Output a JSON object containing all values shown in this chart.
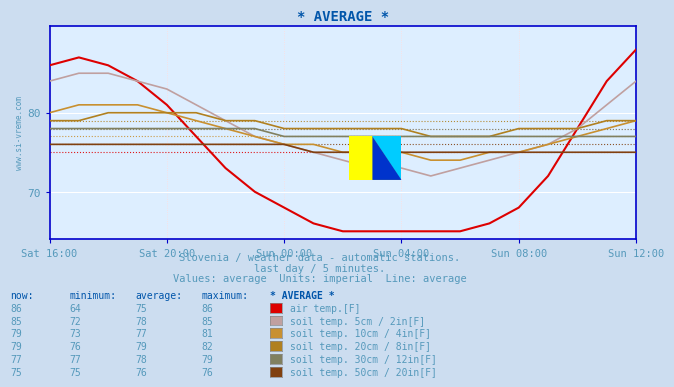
{
  "title": "* AVERAGE *",
  "title_color": "#0055aa",
  "bg_color": "#ccddf0",
  "plot_bg_color": "#ddeeff",
  "grid_color_major": "#ffffff",
  "grid_color_minor": "#eef4ff",
  "axis_color": "#0000cc",
  "text_color": "#5599bb",
  "subtitle1": "Slovenia / weather data - automatic stations.",
  "subtitle2": "last day / 5 minutes.",
  "subtitle3": "Values: average  Units: imperial  Line: average",
  "ylabel_text": "www.si-vreme.com",
  "ylim": [
    64,
    91
  ],
  "yticks": [
    70,
    80
  ],
  "xtick_labels": [
    "Sat 16:00",
    "Sat 20:00",
    "Sun 00:00",
    "Sun 04:00",
    "Sun 08:00",
    "Sun 12:00"
  ],
  "xtick_positions": [
    0,
    4,
    8,
    12,
    16,
    20
  ],
  "series_keys": [
    "air_temp",
    "soil_5cm",
    "soil_10cm",
    "soil_20cm",
    "soil_30cm",
    "soil_50cm"
  ],
  "series": {
    "air_temp": {
      "color": "#dd0000",
      "avg": 75,
      "points": [
        86,
        87,
        86,
        84,
        81,
        77,
        73,
        70,
        68,
        66,
        65,
        65,
        65,
        65,
        65,
        66,
        68,
        72,
        78,
        84,
        88
      ]
    },
    "soil_5cm": {
      "color": "#c0a0a0",
      "avg": 78,
      "points": [
        84,
        85,
        85,
        84,
        83,
        81,
        79,
        77,
        76,
        75,
        74,
        73,
        73,
        72,
        73,
        74,
        75,
        76,
        78,
        81,
        84
      ]
    },
    "soil_10cm": {
      "color": "#c89030",
      "avg": 77,
      "points": [
        80,
        81,
        81,
        81,
        80,
        79,
        78,
        77,
        76,
        76,
        75,
        75,
        75,
        74,
        74,
        75,
        75,
        76,
        77,
        78,
        79
      ]
    },
    "soil_20cm": {
      "color": "#b08020",
      "avg": 79,
      "points": [
        79,
        79,
        80,
        80,
        80,
        80,
        79,
        79,
        78,
        78,
        78,
        78,
        78,
        77,
        77,
        77,
        78,
        78,
        78,
        79,
        79
      ]
    },
    "soil_30cm": {
      "color": "#808060",
      "avg": 78,
      "points": [
        78,
        78,
        78,
        78,
        78,
        78,
        78,
        78,
        77,
        77,
        77,
        77,
        77,
        77,
        77,
        77,
        77,
        77,
        77,
        77,
        77
      ]
    },
    "soil_50cm": {
      "color": "#804010",
      "avg": 76,
      "points": [
        76,
        76,
        76,
        76,
        76,
        76,
        76,
        76,
        76,
        75,
        75,
        75,
        75,
        75,
        75,
        75,
        75,
        75,
        75,
        75,
        75
      ]
    }
  },
  "legend_header": "* AVERAGE *",
  "legend_rows": [
    {
      "now": 86,
      "min": 64,
      "avg": 75,
      "max": 86,
      "color": "#dd0000",
      "label": "air temp.[F]"
    },
    {
      "now": 85,
      "min": 72,
      "avg": 78,
      "max": 85,
      "color": "#c0a0a0",
      "label": "soil temp. 5cm / 2in[F]"
    },
    {
      "now": 79,
      "min": 73,
      "avg": 77,
      "max": 81,
      "color": "#c89030",
      "label": "soil temp. 10cm / 4in[F]"
    },
    {
      "now": 79,
      "min": 76,
      "avg": 79,
      "max": 82,
      "color": "#b08020",
      "label": "soil temp. 20cm / 8in[F]"
    },
    {
      "now": 77,
      "min": 77,
      "avg": 78,
      "max": 79,
      "color": "#808060",
      "label": "soil temp. 30cm / 12in[F]"
    },
    {
      "now": 75,
      "min": 75,
      "avg": 76,
      "max": 76,
      "color": "#804010",
      "label": "soil temp. 50cm / 20in[F]"
    }
  ]
}
